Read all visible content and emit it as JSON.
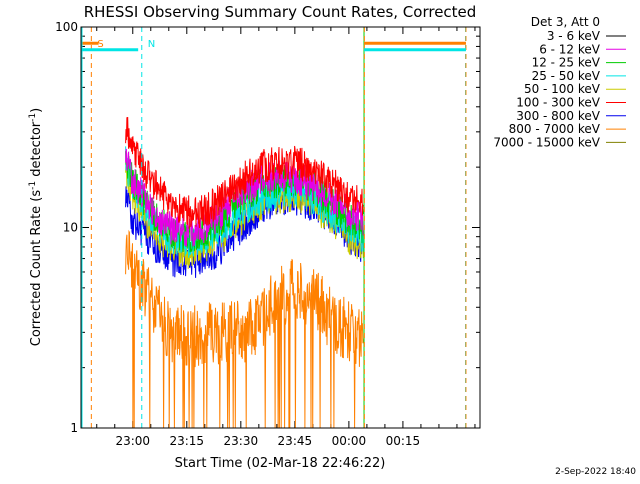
{
  "chart_data": {
    "type": "line",
    "title": "RHESSI Observing Summary Count Rates, Corrected",
    "xlabel": "Start Time (02-Mar-18 22:46:22)",
    "ylabel": "Corrected Count Rate (s⁻¹ detector⁻¹)",
    "ylabel_parts": [
      "Corrected Count Rate (s",
      "-1",
      " detector",
      "-1",
      ")"
    ],
    "yscale": "log",
    "ylim": [
      1,
      100
    ],
    "xlim_minutes": [
      -14.37,
      96.4
    ],
    "y_ticks": [
      {
        "value": 1,
        "label": "1"
      },
      {
        "value": 10,
        "label": "10"
      },
      {
        "value": 100,
        "label": "100"
      }
    ],
    "x_ticks": [
      {
        "minutes": 0,
        "label": "23:00"
      },
      {
        "minutes": 15,
        "label": "23:15"
      },
      {
        "minutes": 30,
        "label": "23:30"
      },
      {
        "minutes": 45,
        "label": "23:45"
      },
      {
        "minutes": 60,
        "label": "00:00"
      },
      {
        "minutes": 75,
        "label": "00:15"
      }
    ],
    "x_minor_step_minutes": 5,
    "legend_header": "Det 3, Att 0",
    "legend_position": "right",
    "data_window_minutes": [
      -2,
      64
    ],
    "series": [
      {
        "name": "3 - 6 keV",
        "color": "#000000",
        "points": []
      },
      {
        "name": "6 - 12 keV",
        "color": "#e600e6",
        "points": [
          [
            -2,
            22
          ],
          [
            0,
            17
          ],
          [
            5,
            12
          ],
          [
            10,
            10
          ],
          [
            15,
            9.5
          ],
          [
            20,
            10
          ],
          [
            25,
            12
          ],
          [
            30,
            15
          ],
          [
            35,
            17
          ],
          [
            40,
            18
          ],
          [
            45,
            18
          ],
          [
            50,
            16
          ],
          [
            55,
            14
          ],
          [
            60,
            12
          ],
          [
            64,
            11
          ]
        ]
      },
      {
        "name": "12 - 25 keV",
        "color": "#00cc00",
        "points": [
          [
            -2,
            23
          ],
          [
            0,
            17
          ],
          [
            5,
            12
          ],
          [
            10,
            9.5
          ],
          [
            15,
            9
          ],
          [
            20,
            9.5
          ],
          [
            25,
            11
          ],
          [
            30,
            14
          ],
          [
            35,
            16
          ],
          [
            40,
            17
          ],
          [
            45,
            17.5
          ],
          [
            50,
            16
          ],
          [
            55,
            13
          ],
          [
            60,
            11
          ],
          [
            64,
            10
          ]
        ]
      },
      {
        "name": "25 - 50 keV",
        "color": "#00e5e5",
        "points": [
          [
            -2,
            21
          ],
          [
            0,
            16
          ],
          [
            5,
            11
          ],
          [
            10,
            9
          ],
          [
            15,
            8.5
          ],
          [
            20,
            9
          ],
          [
            25,
            10
          ],
          [
            30,
            12
          ],
          [
            35,
            14
          ],
          [
            40,
            15
          ],
          [
            45,
            15.5
          ],
          [
            50,
            14
          ],
          [
            55,
            12
          ],
          [
            60,
            10
          ],
          [
            64,
            9
          ]
        ]
      },
      {
        "name": "50 - 100 keV",
        "color": "#cccc00",
        "points": [
          [
            -2,
            19
          ],
          [
            0,
            14
          ],
          [
            5,
            10
          ],
          [
            10,
            8
          ],
          [
            15,
            7.5
          ],
          [
            20,
            8
          ],
          [
            25,
            9
          ],
          [
            30,
            11
          ],
          [
            35,
            13
          ],
          [
            40,
            14
          ],
          [
            45,
            14.5
          ],
          [
            50,
            13
          ],
          [
            55,
            11
          ],
          [
            60,
            9
          ],
          [
            64,
            8
          ]
        ]
      },
      {
        "name": "100 - 300 keV",
        "color": "#ff0000",
        "points": [
          [
            -2,
            32
          ],
          [
            0,
            24
          ],
          [
            2,
            21
          ],
          [
            5,
            17
          ],
          [
            10,
            14
          ],
          [
            15,
            12
          ],
          [
            20,
            12
          ],
          [
            25,
            14
          ],
          [
            30,
            17
          ],
          [
            35,
            20
          ],
          [
            40,
            21
          ],
          [
            45,
            21
          ],
          [
            50,
            20
          ],
          [
            55,
            17
          ],
          [
            60,
            14
          ],
          [
            64,
            13
          ]
        ]
      },
      {
        "name": "300 - 800 keV",
        "color": "#0000ee",
        "points": [
          [
            -2,
            14
          ],
          [
            0,
            11
          ],
          [
            5,
            8.5
          ],
          [
            10,
            7
          ],
          [
            15,
            6.5
          ],
          [
            20,
            7
          ],
          [
            25,
            8
          ],
          [
            30,
            10
          ],
          [
            35,
            12
          ],
          [
            40,
            14
          ],
          [
            45,
            14
          ],
          [
            50,
            13
          ],
          [
            55,
            11
          ],
          [
            60,
            9
          ],
          [
            64,
            8
          ]
        ]
      },
      {
        "name": "800 - 7000 keV",
        "color": "#ff8000",
        "points": [
          [
            -2,
            7.5
          ],
          [
            0,
            6
          ],
          [
            5,
            4.5
          ],
          [
            10,
            3
          ],
          [
            15,
            2.8
          ],
          [
            20,
            3
          ],
          [
            25,
            3
          ],
          [
            30,
            3
          ],
          [
            35,
            3.2
          ],
          [
            40,
            4.5
          ],
          [
            45,
            5
          ],
          [
            50,
            4.5
          ],
          [
            55,
            3.5
          ],
          [
            60,
            3
          ],
          [
            64,
            2.8
          ]
        ]
      },
      {
        "name": "7000 - 15000 keV",
        "color": "#808000",
        "points": []
      }
    ],
    "annotations": [
      {
        "label": "S",
        "color": "#ff8000",
        "x_minutes": -11.5,
        "kind": "dashed-vertical"
      },
      {
        "label": "N",
        "color": "#00e5e5",
        "x_minutes": 2.5,
        "kind": "dashed-vertical"
      }
    ],
    "state_bars": [
      {
        "color": "#ff8000",
        "y_value": 83,
        "segments_minutes": [
          [
            -14.37,
            -9.5
          ],
          [
            64.2,
            92.5
          ]
        ]
      },
      {
        "color": "#00e5e5",
        "y_value": 77,
        "segments_minutes": [
          [
            -14.37,
            1.5
          ],
          [
            64.2,
            92.5
          ]
        ]
      }
    ],
    "extra_dashed_lines": [
      {
        "color": "#ff8000",
        "x_minutes": 64.3
      },
      {
        "color": "#00e5e5",
        "x_minutes": 92.4
      },
      {
        "color": "#ff8000",
        "x_minutes": 92.5
      }
    ],
    "extra_solid_lines": [
      {
        "color": "#00cc00",
        "x_minutes": 64.2
      }
    ],
    "grid": false
  },
  "timestamp": "2-Sep-2022 18:40"
}
